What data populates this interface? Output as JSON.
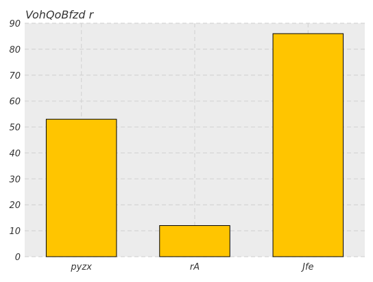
{
  "chart_data": {
    "type": "bar",
    "title": "VohQoBfzd r",
    "xlabel": "",
    "ylabel": "",
    "categories": [
      "pyzx",
      "rA",
      "Jfe"
    ],
    "values": [
      53,
      12,
      86
    ],
    "ylim": [
      0,
      90
    ],
    "yticks": [
      0,
      10,
      20,
      30,
      40,
      50,
      60,
      70,
      80,
      90
    ],
    "grid": true,
    "bar_color": "#ffc500",
    "bar_edge_color": "#000000",
    "plot_background": "#ececec",
    "grid_color": "#d4d4d4"
  }
}
